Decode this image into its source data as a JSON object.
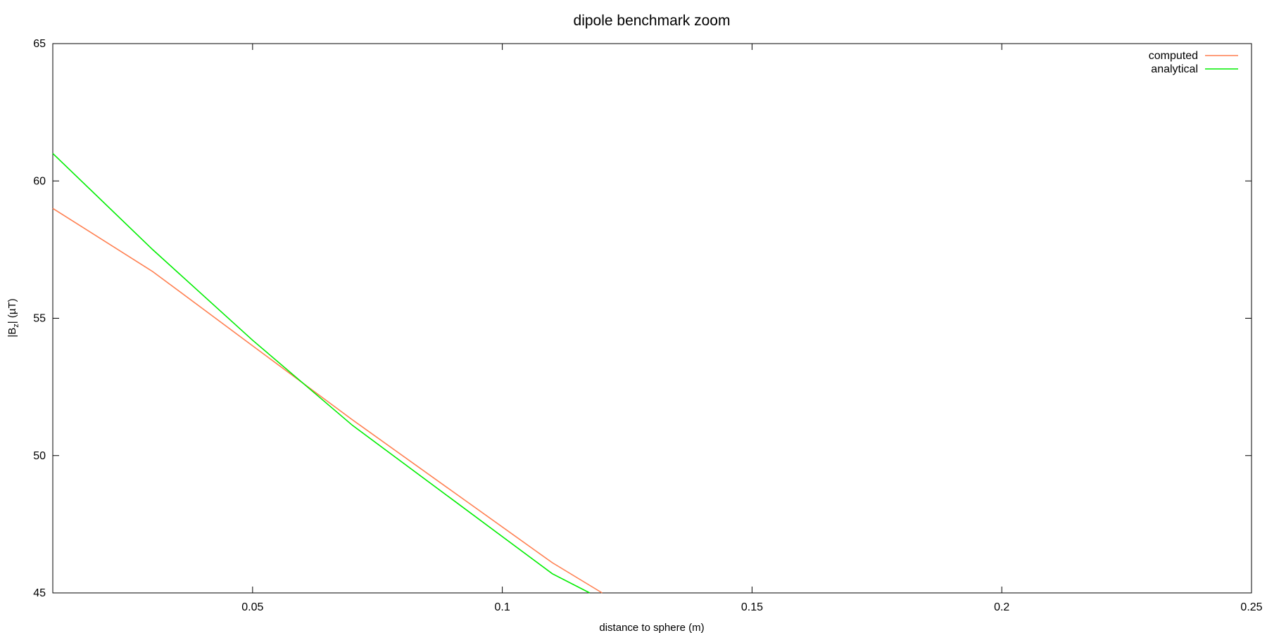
{
  "chart_data": {
    "type": "line",
    "title": "dipole benchmark zoom",
    "xlabel": "distance to sphere (m)",
    "ylabel_main": "|B",
    "ylabel_sub": "z",
    "ylabel_tail": "| (µT)",
    "xlim": [
      0.01,
      0.25
    ],
    "ylim": [
      45,
      65
    ],
    "x_ticks": [
      0.05,
      0.1,
      0.15,
      0.2,
      0.25
    ],
    "x_tick_labels": [
      "0.05",
      "0.1",
      "0.15",
      "0.2",
      "0.25"
    ],
    "y_ticks": [
      45,
      50,
      55,
      60,
      65
    ],
    "y_tick_labels": [
      "45",
      "50",
      "55",
      "60",
      "65"
    ],
    "grid": false,
    "legend_position": "top-right",
    "series": [
      {
        "name": "computed",
        "color": "#ff7f50",
        "x": [
          0.01,
          0.03,
          0.05,
          0.07,
          0.09,
          0.11,
          0.12
        ],
        "y": [
          59.0,
          56.7,
          54.0,
          51.3,
          48.7,
          46.1,
          45.0
        ]
      },
      {
        "name": "analytical",
        "color": "#00ee00",
        "x": [
          0.01,
          0.03,
          0.05,
          0.07,
          0.09,
          0.11,
          0.1175
        ],
        "y": [
          61.0,
          57.5,
          54.2,
          51.1,
          48.4,
          45.7,
          45.0
        ]
      }
    ]
  }
}
